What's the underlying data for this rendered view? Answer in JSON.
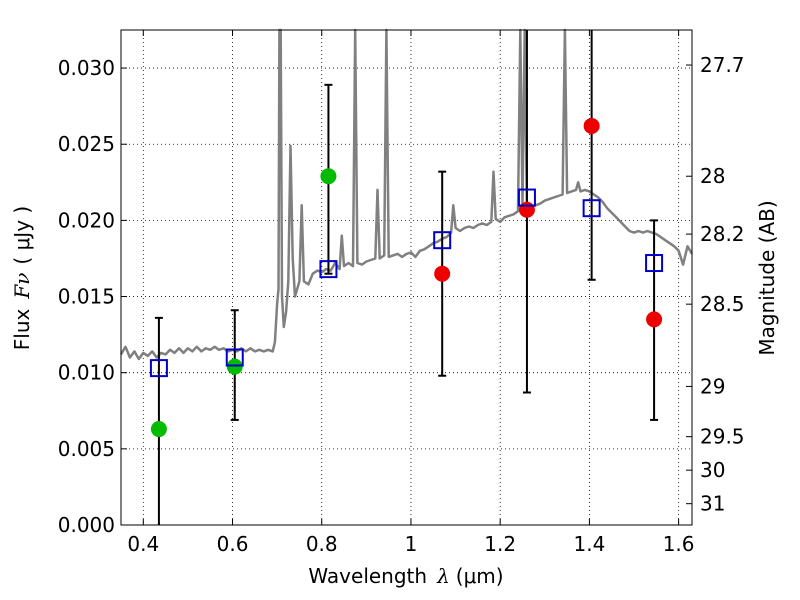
{
  "chart_data": {
    "type": "scatter",
    "xlabel_text": "Wavelength",
    "xlabel_symbol": "λ",
    "xlabel_unit": "(μm)",
    "ylabel_text": "Flux",
    "ylabel_symbol": "Fν",
    "ylabel_unit": "( μJy )",
    "y2label": "Magnitude (AB)",
    "xlim": [
      0.35,
      1.63
    ],
    "ylim": [
      0.0,
      0.0325
    ],
    "grid": true,
    "grid_style": "dotted",
    "x_ticks": [
      0.4,
      0.6,
      0.8,
      1.0,
      1.2,
      1.4,
      1.6
    ],
    "x_tick_labels": [
      "0.4",
      "0.6",
      "0.8",
      "1",
      "1.2",
      "1.4",
      "1.6"
    ],
    "y_ticks": [
      0.0,
      0.005,
      0.01,
      0.015,
      0.02,
      0.025,
      0.03
    ],
    "y_tick_labels": [
      "0.000",
      "0.005",
      "0.010",
      "0.015",
      "0.020",
      "0.025",
      "0.030"
    ],
    "y2_ticks": [
      {
        "label": "27.7",
        "flux": 0.0302
      },
      {
        "label": "28",
        "flux": 0.0229
      },
      {
        "label": "28.2",
        "flux": 0.0191
      },
      {
        "label": "28.5",
        "flux": 0.0145
      },
      {
        "label": "29",
        "flux": 0.0091
      },
      {
        "label": "29.5",
        "flux": 0.0058
      },
      {
        "label": "30",
        "flux": 0.0036
      },
      {
        "label": "31",
        "flux": 0.0014
      }
    ],
    "colors": {
      "spectrum": "#808080",
      "model_square": "#0000cc",
      "green_point": "#00bb00",
      "red_point": "#ee0000",
      "errorbar": "#000000"
    },
    "spectrum": [
      [
        0.35,
        0.0112
      ],
      [
        0.36,
        0.0117
      ],
      [
        0.37,
        0.011
      ],
      [
        0.38,
        0.0114
      ],
      [
        0.39,
        0.0109
      ],
      [
        0.4,
        0.0113
      ],
      [
        0.41,
        0.0111
      ],
      [
        0.42,
        0.0114
      ],
      [
        0.43,
        0.011
      ],
      [
        0.44,
        0.0113
      ],
      [
        0.45,
        0.0112
      ],
      [
        0.46,
        0.0115
      ],
      [
        0.47,
        0.0113
      ],
      [
        0.48,
        0.0116
      ],
      [
        0.49,
        0.0113
      ],
      [
        0.5,
        0.0116
      ],
      [
        0.51,
        0.0114
      ],
      [
        0.52,
        0.0117
      ],
      [
        0.53,
        0.0114
      ],
      [
        0.54,
        0.0116
      ],
      [
        0.55,
        0.0115
      ],
      [
        0.56,
        0.0117
      ],
      [
        0.57,
        0.0115
      ],
      [
        0.58,
        0.0116
      ],
      [
        0.59,
        0.0114
      ],
      [
        0.6,
        0.0115
      ],
      [
        0.61,
        0.0114
      ],
      [
        0.62,
        0.0116
      ],
      [
        0.63,
        0.0114
      ],
      [
        0.64,
        0.0116
      ],
      [
        0.65,
        0.0114
      ],
      [
        0.66,
        0.0115
      ],
      [
        0.67,
        0.0114
      ],
      [
        0.68,
        0.0115
      ],
      [
        0.69,
        0.0114
      ],
      [
        0.695,
        0.012
      ],
      [
        0.7,
        0.0145
      ],
      [
        0.703,
        0.0155
      ],
      [
        0.705,
        0.0325
      ],
      [
        0.708,
        0.0325
      ],
      [
        0.711,
        0.015
      ],
      [
        0.715,
        0.013
      ],
      [
        0.72,
        0.014
      ],
      [
        0.725,
        0.016
      ],
      [
        0.73,
        0.0249
      ],
      [
        0.735,
        0.0175
      ],
      [
        0.74,
        0.015
      ],
      [
        0.75,
        0.016
      ],
      [
        0.755,
        0.021
      ],
      [
        0.76,
        0.016
      ],
      [
        0.77,
        0.0158
      ],
      [
        0.78,
        0.0165
      ],
      [
        0.79,
        0.0167
      ],
      [
        0.8,
        0.0166
      ],
      [
        0.81,
        0.0168
      ],
      [
        0.82,
        0.0167
      ],
      [
        0.83,
        0.0172
      ],
      [
        0.84,
        0.0168
      ],
      [
        0.845,
        0.019
      ],
      [
        0.85,
        0.017
      ],
      [
        0.86,
        0.0172
      ],
      [
        0.87,
        0.017
      ],
      [
        0.875,
        0.0325
      ],
      [
        0.88,
        0.0172
      ],
      [
        0.89,
        0.0171
      ],
      [
        0.9,
        0.0173
      ],
      [
        0.91,
        0.0174
      ],
      [
        0.92,
        0.0175
      ],
      [
        0.925,
        0.022
      ],
      [
        0.93,
        0.0175
      ],
      [
        0.94,
        0.0177
      ],
      [
        0.945,
        0.0325
      ],
      [
        0.95,
        0.0176
      ],
      [
        0.96,
        0.0177
      ],
      [
        0.97,
        0.0178
      ],
      [
        0.98,
        0.0176
      ],
      [
        0.99,
        0.0178
      ],
      [
        1.0,
        0.0179
      ],
      [
        1.01,
        0.0176
      ],
      [
        1.02,
        0.018
      ],
      [
        1.03,
        0.0181
      ],
      [
        1.04,
        0.0183
      ],
      [
        1.05,
        0.0185
      ],
      [
        1.06,
        0.0186
      ],
      [
        1.07,
        0.0188
      ],
      [
        1.08,
        0.0189
      ],
      [
        1.09,
        0.0192
      ],
      [
        1.095,
        0.021
      ],
      [
        1.1,
        0.0195
      ],
      [
        1.11,
        0.0193
      ],
      [
        1.12,
        0.0195
      ],
      [
        1.13,
        0.0196
      ],
      [
        1.14,
        0.0195
      ],
      [
        1.15,
        0.0197
      ],
      [
        1.16,
        0.0198
      ],
      [
        1.17,
        0.0197
      ],
      [
        1.18,
        0.0199
      ],
      [
        1.185,
        0.0232
      ],
      [
        1.19,
        0.0201
      ],
      [
        1.2,
        0.0199
      ],
      [
        1.21,
        0.0202
      ],
      [
        1.22,
        0.0203
      ],
      [
        1.23,
        0.0204
      ],
      [
        1.24,
        0.0206
      ],
      [
        1.245,
        0.0325
      ],
      [
        1.25,
        0.021
      ],
      [
        1.255,
        0.0325
      ],
      [
        1.26,
        0.0208
      ],
      [
        1.27,
        0.0209
      ],
      [
        1.28,
        0.021
      ],
      [
        1.29,
        0.0211
      ],
      [
        1.3,
        0.0213
      ],
      [
        1.31,
        0.0214
      ],
      [
        1.32,
        0.0215
      ],
      [
        1.33,
        0.0216
      ],
      [
        1.34,
        0.0217
      ],
      [
        1.345,
        0.0325
      ],
      [
        1.35,
        0.0218
      ],
      [
        1.36,
        0.0219
      ],
      [
        1.37,
        0.022
      ],
      [
        1.375,
        0.0225
      ],
      [
        1.38,
        0.0219
      ],
      [
        1.39,
        0.022
      ],
      [
        1.4,
        0.0219
      ],
      [
        1.41,
        0.0217
      ],
      [
        1.42,
        0.0215
      ],
      [
        1.43,
        0.0212
      ],
      [
        1.44,
        0.0208
      ],
      [
        1.45,
        0.0205
      ],
      [
        1.46,
        0.0202
      ],
      [
        1.47,
        0.0199
      ],
      [
        1.48,
        0.0196
      ],
      [
        1.49,
        0.0193
      ],
      [
        1.5,
        0.0192
      ],
      [
        1.51,
        0.0193
      ],
      [
        1.52,
        0.0192
      ],
      [
        1.53,
        0.0193
      ],
      [
        1.54,
        0.0192
      ],
      [
        1.55,
        0.0191
      ],
      [
        1.56,
        0.0189
      ],
      [
        1.57,
        0.0187
      ],
      [
        1.58,
        0.0185
      ],
      [
        1.59,
        0.0183
      ],
      [
        1.6,
        0.018
      ],
      [
        1.61,
        0.0171
      ],
      [
        1.62,
        0.0183
      ],
      [
        1.63,
        0.0178
      ]
    ],
    "model_points": [
      {
        "x": 0.435,
        "y": 0.0103
      },
      {
        "x": 0.605,
        "y": 0.011
      },
      {
        "x": 0.815,
        "y": 0.0168
      },
      {
        "x": 1.07,
        "y": 0.0187
      },
      {
        "x": 1.26,
        "y": 0.0215
      },
      {
        "x": 1.405,
        "y": 0.0208
      },
      {
        "x": 1.545,
        "y": 0.0172
      }
    ],
    "observed_points": [
      {
        "x": 0.435,
        "y": 0.0063,
        "yerr_low": 0.0,
        "yerr_high": 0.0136,
        "color": "green"
      },
      {
        "x": 0.605,
        "y": 0.0104,
        "yerr_low": 0.0069,
        "yerr_high": 0.0141,
        "color": "green"
      },
      {
        "x": 0.815,
        "y": 0.0229,
        "yerr_low": 0.0165,
        "yerr_high": 0.0289,
        "color": "green"
      },
      {
        "x": 1.07,
        "y": 0.0165,
        "yerr_low": 0.0098,
        "yerr_high": 0.0232,
        "color": "red"
      },
      {
        "x": 1.26,
        "y": 0.0207,
        "yerr_low": 0.0087,
        "yerr_high": 0.0325,
        "color": "red"
      },
      {
        "x": 1.405,
        "y": 0.0262,
        "yerr_low": 0.0161,
        "yerr_high": 0.0325,
        "color": "red"
      },
      {
        "x": 1.545,
        "y": 0.0135,
        "yerr_low": 0.0069,
        "yerr_high": 0.02,
        "color": "red"
      }
    ]
  }
}
